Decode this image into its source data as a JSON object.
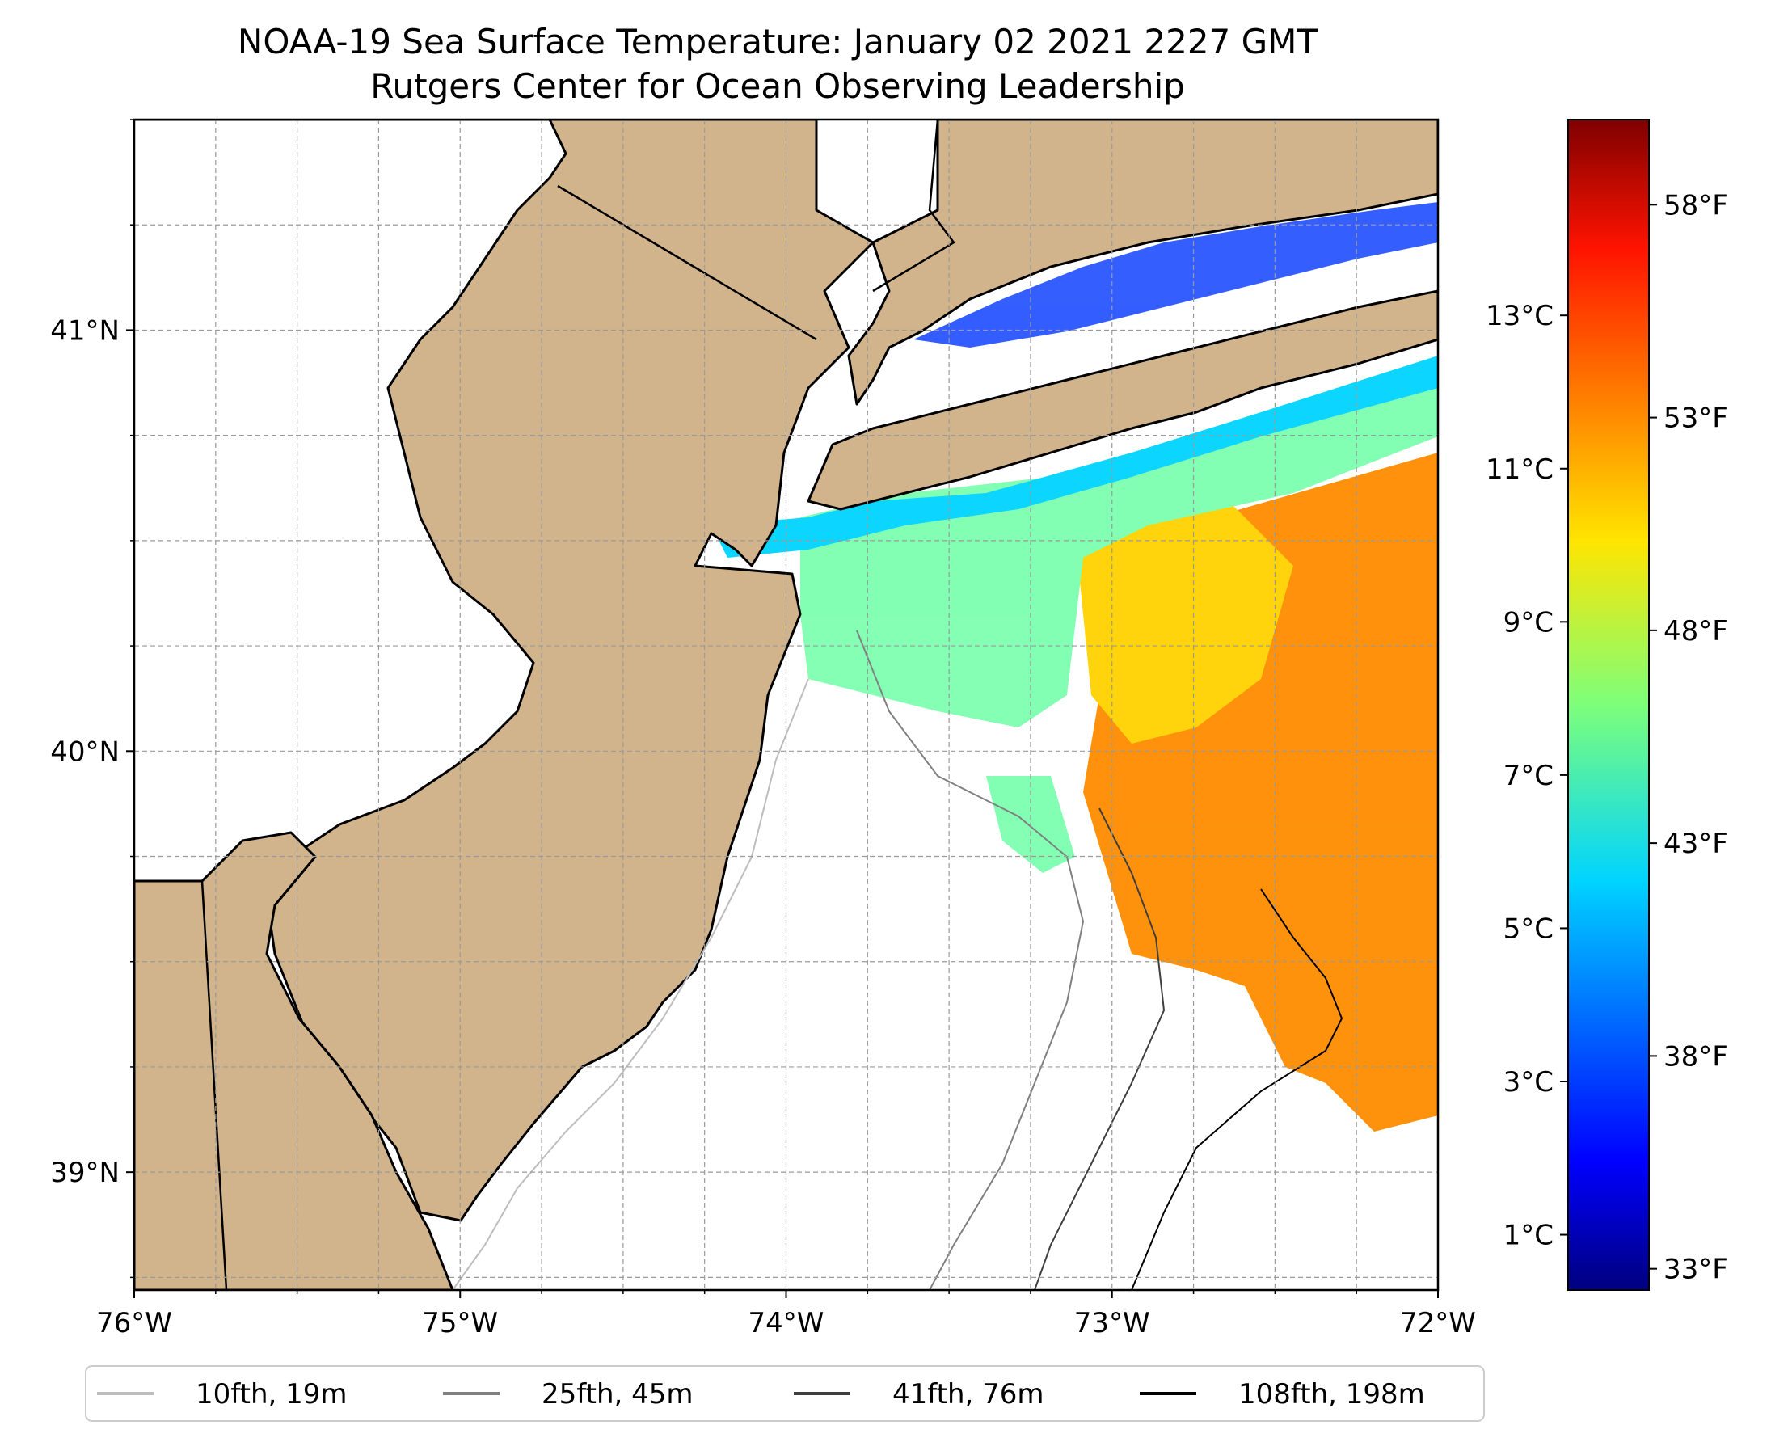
{
  "title": {
    "line1": "NOAA-19 Sea Surface Temperature: January 02 2021 2227 GMT",
    "line2": "Rutgers Center for Ocean Observing Leadership"
  },
  "colors": {
    "land": "#d2b48c",
    "water": "#ffffff",
    "coast": "#000000",
    "grid": "#9a9a9a",
    "iso10": "#bdbdbd",
    "iso25": "#808080",
    "iso41": "#3f3f3f",
    "iso108": "#000000"
  },
  "chart_data": {
    "type": "heatmap",
    "map_extent": {
      "lon": [
        -76.0,
        -72.0
      ],
      "lat": [
        38.72,
        41.5
      ]
    },
    "lon_ticks": [
      {
        "value": -76,
        "label": "76°W"
      },
      {
        "value": -75,
        "label": "75°W"
      },
      {
        "value": -74,
        "label": "74°W"
      },
      {
        "value": -73,
        "label": "73°W"
      },
      {
        "value": -72,
        "label": "72°W"
      }
    ],
    "lat_ticks": [
      {
        "value": 41,
        "label": "41°N"
      },
      {
        "value": 40,
        "label": "40°N"
      },
      {
        "value": 39,
        "label": "39°N"
      }
    ],
    "grid": true,
    "colorbar": {
      "colormap": "jet",
      "range_f": [
        32.5,
        60.0
      ],
      "fahrenheit_ticks": [
        {
          "value": 33,
          "label": "33°F"
        },
        {
          "value": 38,
          "label": "38°F"
        },
        {
          "value": 43,
          "label": "43°F"
        },
        {
          "value": 48,
          "label": "48°F"
        },
        {
          "value": 53,
          "label": "53°F"
        },
        {
          "value": 58,
          "label": "58°F"
        }
      ],
      "celsius_ticks": [
        {
          "value": 1,
          "label": "1°C"
        },
        {
          "value": 3,
          "label": "3°C"
        },
        {
          "value": 5,
          "label": "5°C"
        },
        {
          "value": 7,
          "label": "7°C"
        },
        {
          "value": 9,
          "label": "9°C"
        },
        {
          "value": 11,
          "label": "11°C"
        },
        {
          "value": 13,
          "label": "13°C"
        }
      ]
    },
    "legend": {
      "placement": "bottom",
      "entries": [
        {
          "label": "10fth, 19m",
          "color": "#bdbdbd"
        },
        {
          "label": "25fth, 45m",
          "color": "#808080"
        },
        {
          "label": "41fth, 76m",
          "color": "#3f3f3f"
        },
        {
          "label": "108fth, 198m",
          "color": "#000000"
        }
      ]
    }
  }
}
